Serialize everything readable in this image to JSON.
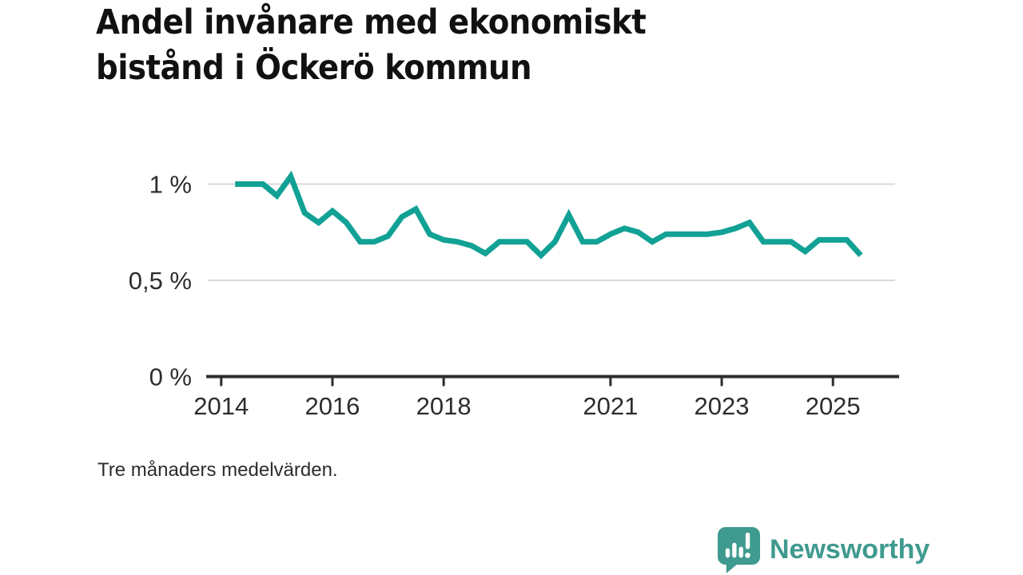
{
  "header": {
    "title": "Andel invånare med ekonomiskt\nbistånd i Öckerö kommun"
  },
  "footer": {
    "note": "Tre månaders medelvärden."
  },
  "branding": {
    "name": "Newsworthy",
    "logo_icon": "newsworthy-speech-bubble-barchart-icon"
  },
  "colors": {
    "background": "#ffffff",
    "title": "#111111",
    "text": "#2d2d2d",
    "axis": "#2d2d2d",
    "grid": "#d9d9d9",
    "line": "#12a195",
    "brand": "#3f9a8f"
  },
  "chart_data": {
    "type": "line",
    "title": "Andel invånare med ekonomiskt bistånd i Öckerö kommun",
    "subtitle": "Tre månaders medelvärden.",
    "unit": "%",
    "grid": "horizontal-only",
    "legend": "none",
    "xlim": [
      2013.73,
      2026.19
    ],
    "ylim": [
      0,
      1.1
    ],
    "x_ticks": [
      {
        "value": 2014,
        "label": "2014"
      },
      {
        "value": 2016,
        "label": "2016"
      },
      {
        "value": 2018,
        "label": "2018"
      },
      {
        "value": 2021,
        "label": "2021"
      },
      {
        "value": 2023,
        "label": "2023"
      },
      {
        "value": 2025,
        "label": "2025"
      }
    ],
    "y_ticks": [
      {
        "value": 1,
        "label": "1 %"
      },
      {
        "value": 0.5,
        "label": "0,5 %"
      },
      {
        "value": 0,
        "label": "0 %"
      }
    ],
    "series": [
      {
        "name": "Andel invånare med ekonomiskt bistånd",
        "points": [
          [
            "2014-04",
            1.0
          ],
          [
            "2014-07",
            1.0
          ],
          [
            "2014-10",
            1.0
          ],
          [
            "2015-01",
            0.94
          ],
          [
            "2015-04",
            1.04
          ],
          [
            "2015-07",
            0.85
          ],
          [
            "2015-10",
            0.8
          ],
          [
            "2016-01",
            0.86
          ],
          [
            "2016-04",
            0.8
          ],
          [
            "2016-07",
            0.7
          ],
          [
            "2016-10",
            0.7
          ],
          [
            "2017-01",
            0.73
          ],
          [
            "2017-04",
            0.83
          ],
          [
            "2017-07",
            0.87
          ],
          [
            "2017-10",
            0.74
          ],
          [
            "2018-01",
            0.71
          ],
          [
            "2018-04",
            0.7
          ],
          [
            "2018-07",
            0.68
          ],
          [
            "2018-10",
            0.64
          ],
          [
            "2019-01",
            0.7
          ],
          [
            "2019-04",
            0.7
          ],
          [
            "2019-07",
            0.7
          ],
          [
            "2019-10",
            0.63
          ],
          [
            "2020-01",
            0.7
          ],
          [
            "2020-04",
            0.84
          ],
          [
            "2020-07",
            0.7
          ],
          [
            "2020-10",
            0.7
          ],
          [
            "2021-01",
            0.74
          ],
          [
            "2021-04",
            0.77
          ],
          [
            "2021-07",
            0.75
          ],
          [
            "2021-10",
            0.7
          ],
          [
            "2022-01",
            0.74
          ],
          [
            "2022-04",
            0.74
          ],
          [
            "2022-07",
            0.74
          ],
          [
            "2022-10",
            0.74
          ],
          [
            "2023-01",
            0.75
          ],
          [
            "2023-04",
            0.77
          ],
          [
            "2023-07",
            0.8
          ],
          [
            "2023-10",
            0.7
          ],
          [
            "2024-01",
            0.7
          ],
          [
            "2024-04",
            0.7
          ],
          [
            "2024-07",
            0.65
          ],
          [
            "2024-10",
            0.71
          ],
          [
            "2025-01",
            0.71
          ],
          [
            "2025-04",
            0.71
          ],
          [
            "2025-07",
            0.63
          ]
        ]
      }
    ]
  }
}
